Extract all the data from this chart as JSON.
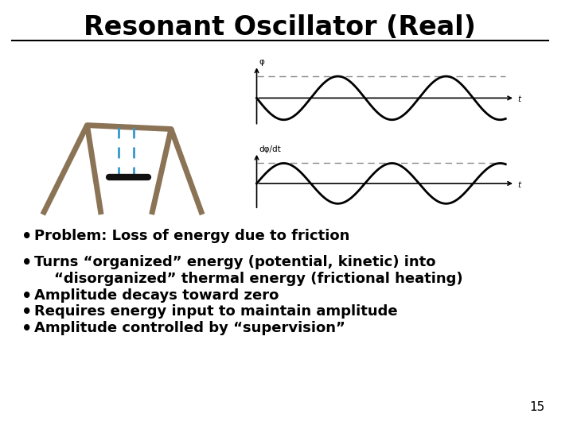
{
  "title": "Resonant Oscillator (Real)",
  "background_color": "#ffffff",
  "title_fontsize": 24,
  "title_fontweight": "bold",
  "bullet_points": [
    "Problem: Loss of energy due to friction",
    "Turns “organized” energy (potential, kinetic) into\n    “disorganized” thermal energy (frictional heating)",
    "Amplitude decays toward zero",
    "Requires energy input to maintain amplitude",
    "Amplitude controlled by “supervision”"
  ],
  "bullet_fontsize": 13,
  "page_number": "15",
  "swing_color": "#8B7355",
  "swing_seat_color": "#111111",
  "rope_color": "#3399CC",
  "wave_color": "#000000",
  "dash_color": "#888888",
  "axis_color": "#000000"
}
